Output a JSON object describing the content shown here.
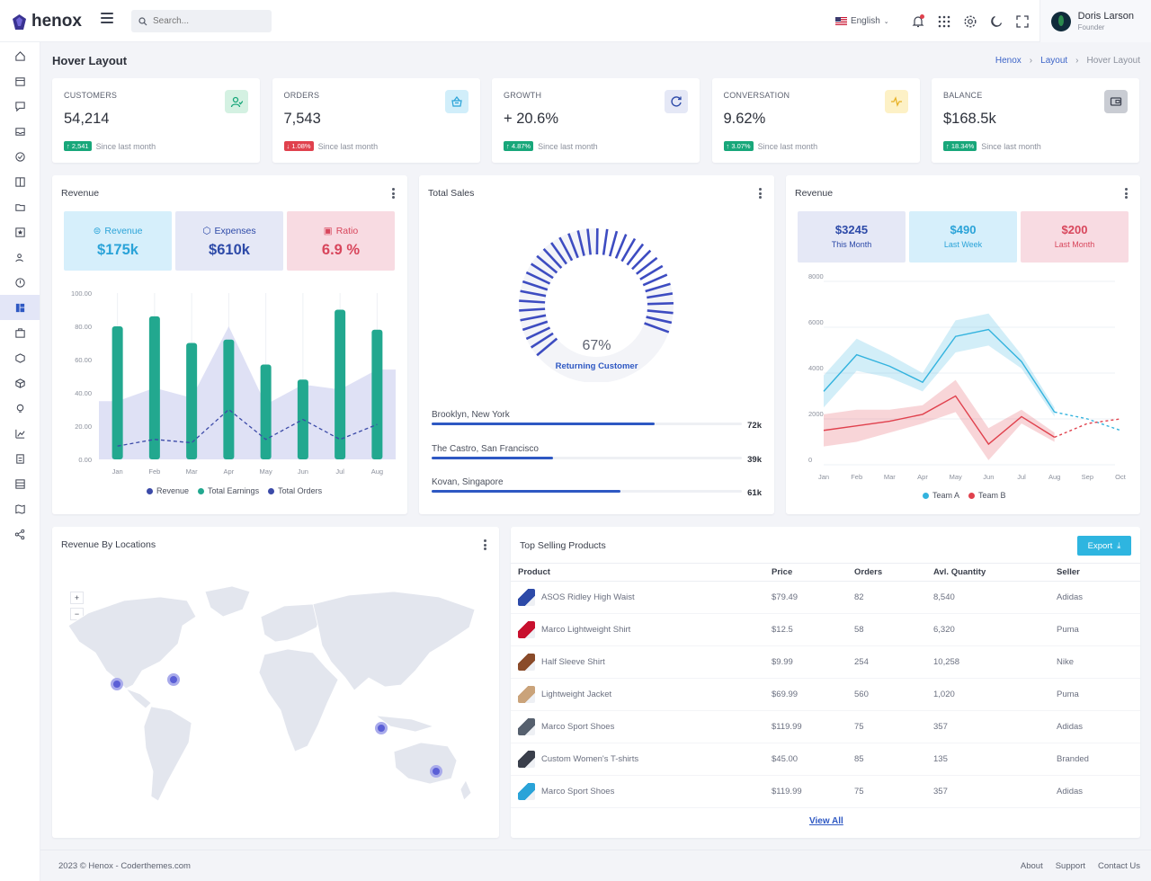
{
  "brand": {
    "name": "henox"
  },
  "search": {
    "placeholder": "Search..."
  },
  "topbar": {
    "language": "English",
    "user_name": "Doris Larson",
    "user_role": "Founder"
  },
  "page": {
    "title": "Hover Layout",
    "breadcrumb": [
      "Henox",
      "Layout",
      "Hover Layout"
    ]
  },
  "stats": [
    {
      "label": "CUSTOMERS",
      "value": "54,214",
      "change": "↑ 2,541",
      "note": "Since last month",
      "trend": "up",
      "color": "#18a77a"
    },
    {
      "label": "ORDERS",
      "value": "7,543",
      "change": "↓ 1.08%",
      "note": "Since last month",
      "trend": "down",
      "color": "#e0414d"
    },
    {
      "label": "GROWTH",
      "value": "+ 20.6%",
      "change": "↑ 4.87%",
      "note": "Since last month",
      "trend": "up",
      "color": "#18a77a"
    },
    {
      "label": "CONVERSATION",
      "value": "9.62%",
      "change": "↑ 3.07%",
      "note": "Since last month",
      "trend": "up",
      "color": "#18a77a"
    },
    {
      "label": "BALANCE",
      "value": "$168.5k",
      "change": "↑ 18.34%",
      "note": "Since last month",
      "trend": "up",
      "color": "#18a77a"
    }
  ],
  "revenue_card": {
    "title": "Revenue",
    "boxes": [
      {
        "label": "Revenue",
        "value": "$175k"
      },
      {
        "label": "Expenses",
        "value": "$610k"
      },
      {
        "label": "Ratio",
        "value": "6.9 %"
      }
    ]
  },
  "sales_card": {
    "title": "Total Sales",
    "gauge_value": "67%",
    "gauge_label": "Returning Customer",
    "locations": [
      {
        "name": "Brooklyn, New York",
        "value": "72k",
        "fill": 0.72
      },
      {
        "name": "The Castro, San Francisco",
        "value": "39k",
        "fill": 0.39
      },
      {
        "name": "Kovan, Singapore",
        "value": "61k",
        "fill": 0.61
      }
    ]
  },
  "team_card": {
    "title": "Revenue",
    "boxes": [
      {
        "value": "$3245",
        "label": "This Month"
      },
      {
        "value": "$490",
        "label": "Last Week"
      },
      {
        "value": "$200",
        "label": "Last Month"
      }
    ]
  },
  "map_card": {
    "title": "Revenue By Locations",
    "zoom_in": "+",
    "zoom_out": "−"
  },
  "products_card": {
    "title": "Top Selling Products",
    "export_label": "Export",
    "columns": [
      "Product",
      "Price",
      "Orders",
      "Avl. Quantity",
      "Seller"
    ],
    "rows": [
      {
        "name": "ASOS Ridley High Waist",
        "price": "$79.49",
        "orders": "82",
        "qty": "8,540",
        "seller": "Adidas"
      },
      {
        "name": "Marco Lightweight Shirt",
        "price": "$12.5",
        "orders": "58",
        "qty": "6,320",
        "seller": "Puma"
      },
      {
        "name": "Half Sleeve Shirt",
        "price": "$9.99",
        "orders": "254",
        "qty": "10,258",
        "seller": "Nike"
      },
      {
        "name": "Lightweight Jacket",
        "price": "$69.99",
        "orders": "560",
        "qty": "1,020",
        "seller": "Puma"
      },
      {
        "name": "Marco Sport Shoes",
        "price": "$119.99",
        "orders": "75",
        "qty": "357",
        "seller": "Adidas"
      },
      {
        "name": "Custom Women's T-shirts",
        "price": "$45.00",
        "orders": "85",
        "qty": "135",
        "seller": "Branded"
      },
      {
        "name": "Marco Sport Shoes",
        "price": "$119.99",
        "orders": "75",
        "qty": "357",
        "seller": "Adidas"
      }
    ],
    "view_all": "View All"
  },
  "footer": {
    "copyright": "2023 © Henox - Coderthemes.com",
    "links": [
      "About",
      "Support",
      "Contact Us"
    ]
  },
  "icons": {
    "sidebar": [
      "home-icon",
      "calendar-icon",
      "chat-icon",
      "inbox-icon",
      "task-icon",
      "kanban-icon",
      "folder-icon",
      "star-icon",
      "users-icon",
      "alert-icon",
      "layout-icon",
      "briefcase-icon",
      "box-icon",
      "package-icon",
      "bulb-icon",
      "chart-icon",
      "clipboard-icon",
      "table-icon",
      "map-icon",
      "share-icon"
    ]
  },
  "chart_data": [
    {
      "type": "bar",
      "categories": [
        "Jan",
        "Feb",
        "Mar",
        "Apr",
        "May",
        "Jun",
        "Jul",
        "Aug"
      ],
      "ylim": [
        0,
        100
      ],
      "yticks": [
        "0.00",
        "20.00",
        "40.00",
        "60.00",
        "80.00",
        "100.00"
      ],
      "series": [
        {
          "name": "Revenue",
          "type": "line",
          "values": [
            8,
            12,
            10,
            30,
            12,
            24,
            12,
            21
          ],
          "color": "#3b4aa8"
        },
        {
          "name": "Total Earnings",
          "type": "bar",
          "values": [
            80,
            86,
            70,
            72,
            57,
            48,
            90,
            78
          ],
          "color": "#22a88f"
        },
        {
          "name": "Total Orders",
          "type": "area",
          "values": [
            35,
            43,
            37,
            80,
            33,
            45,
            42,
            54
          ],
          "color": "#d9dcf3"
        }
      ]
    },
    {
      "type": "line",
      "categories": [
        "Jan",
        "Feb",
        "Mar",
        "Apr",
        "May",
        "Jun",
        "Jul",
        "Aug",
        "Sep",
        "Oct"
      ],
      "ylim": [
        0,
        8000
      ],
      "yticks": [
        "0",
        "2000",
        "4000",
        "6000",
        "8000"
      ],
      "series": [
        {
          "name": "Team A",
          "values": [
            3200,
            4800,
            4300,
            3600,
            5600,
            5900,
            4500,
            2300,
            2000,
            1500
          ],
          "color": "#33b3de"
        },
        {
          "name": "Team B",
          "values": [
            1500,
            1700,
            1900,
            2200,
            3000,
            900,
            2100,
            1200,
            1800,
            2000
          ],
          "color": "#e0414d"
        }
      ]
    }
  ]
}
